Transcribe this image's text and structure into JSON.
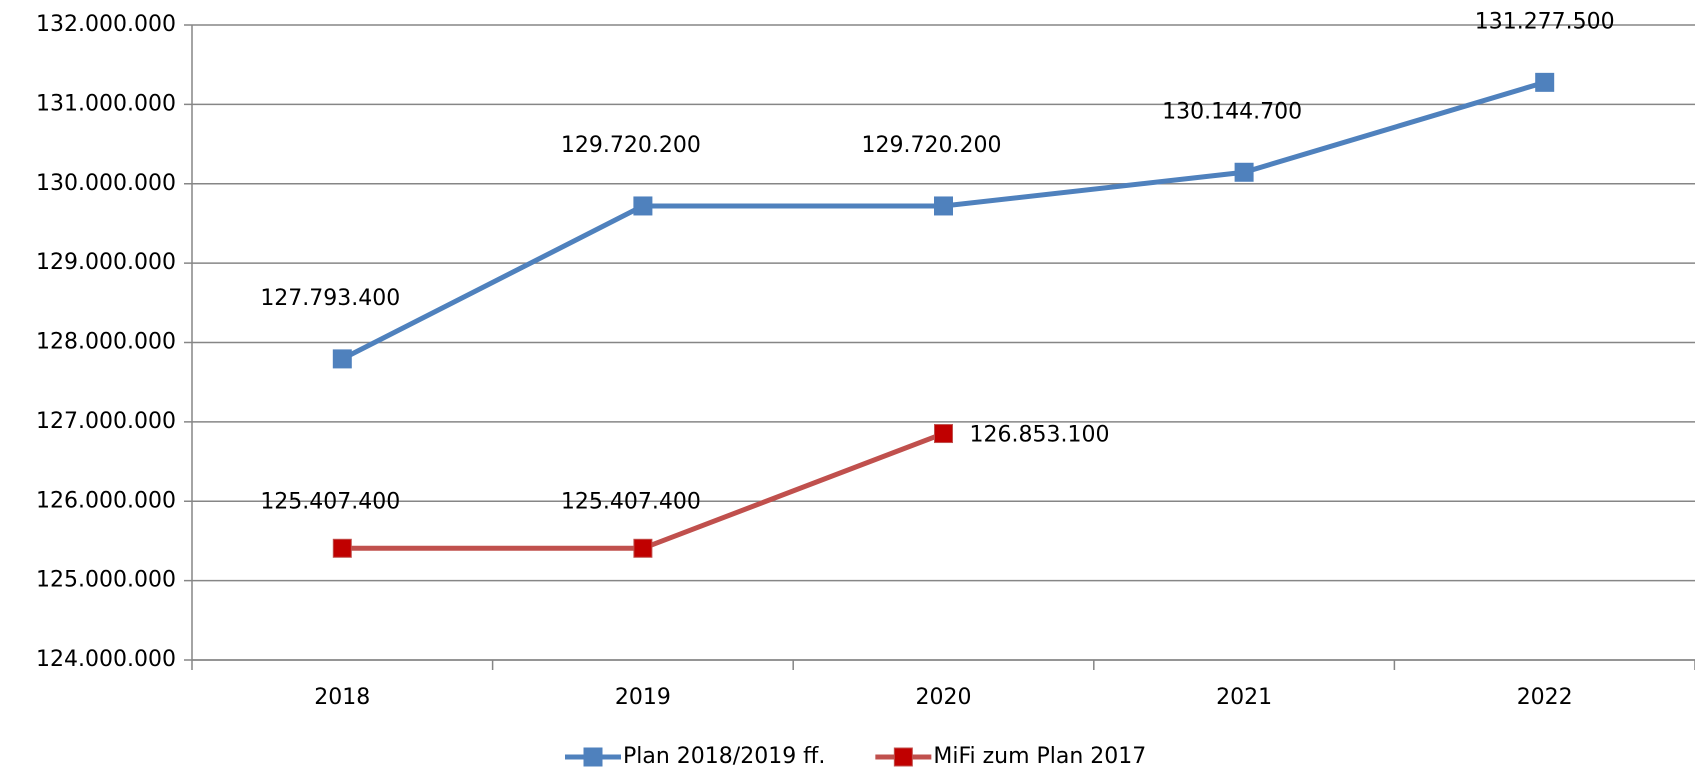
{
  "chart_data": {
    "type": "line",
    "categories": [
      "2018",
      "2019",
      "2020",
      "2021",
      "2022"
    ],
    "series": [
      {
        "name": "Plan 2018/2019 ff.",
        "color": "#4f81bd",
        "marker_color": "#4f81bd",
        "values": [
          127793400,
          129720200,
          129720200,
          130144700,
          131277500
        ],
        "value_labels": [
          "127.793.400",
          "129.720.200",
          "129.720.200",
          "130.144.700",
          "131.277.500"
        ]
      },
      {
        "name": "MiFi zum Plan 2017",
        "color": "#c0504d",
        "marker_color": "#c00000",
        "values": [
          125407400,
          125407400,
          126853100,
          null,
          null
        ],
        "value_labels": [
          "125.407.400",
          "125.407.400",
          "126.853.100",
          null,
          null
        ]
      }
    ],
    "ylim": [
      124000000,
      132000000
    ],
    "yticks": [
      {
        "value": 124000000,
        "label": "124.000.000"
      },
      {
        "value": 125000000,
        "label": "125.000.000"
      },
      {
        "value": 126000000,
        "label": "126.000.000"
      },
      {
        "value": 127000000,
        "label": "127.000.000"
      },
      {
        "value": 128000000,
        "label": "128.000.000"
      },
      {
        "value": 129000000,
        "label": "129.000.000"
      },
      {
        "value": 130000000,
        "label": "130.000.000"
      },
      {
        "value": 131000000,
        "label": "131.000.000"
      },
      {
        "value": 132000000,
        "label": "132.000.000"
      }
    ],
    "grid": true,
    "legend": "bottom"
  }
}
